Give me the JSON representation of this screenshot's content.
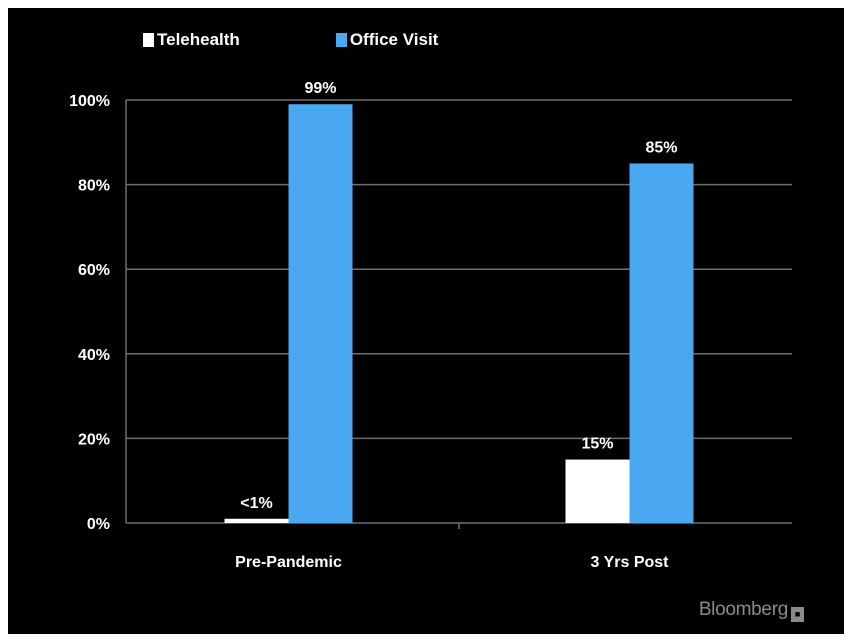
{
  "chart_data": {
    "type": "bar",
    "categories": [
      "Pre-Pandemic",
      "3 Yrs Post"
    ],
    "series": [
      {
        "name": "Telehealth",
        "values": [
          1,
          15
        ],
        "labels": [
          "<1%",
          "15%"
        ],
        "color": "#ffffff"
      },
      {
        "name": "Office Visit",
        "values": [
          99,
          85
        ],
        "labels": [
          "99%",
          "85%"
        ],
        "color": "#4aa8f0"
      }
    ],
    "ylim": [
      0,
      100
    ],
    "yticks": [
      "0%",
      "20%",
      "40%",
      "60%",
      "80%",
      "100%"
    ],
    "grid": true,
    "legend_position": "top-left",
    "title": "",
    "xlabel": "",
    "ylabel": ""
  },
  "watermark": {
    "text": "Bloomberg",
    "icon": "bloomberg-logo-icon"
  },
  "colors": {
    "background": "#000000",
    "grid": "#6e6e6e"
  }
}
